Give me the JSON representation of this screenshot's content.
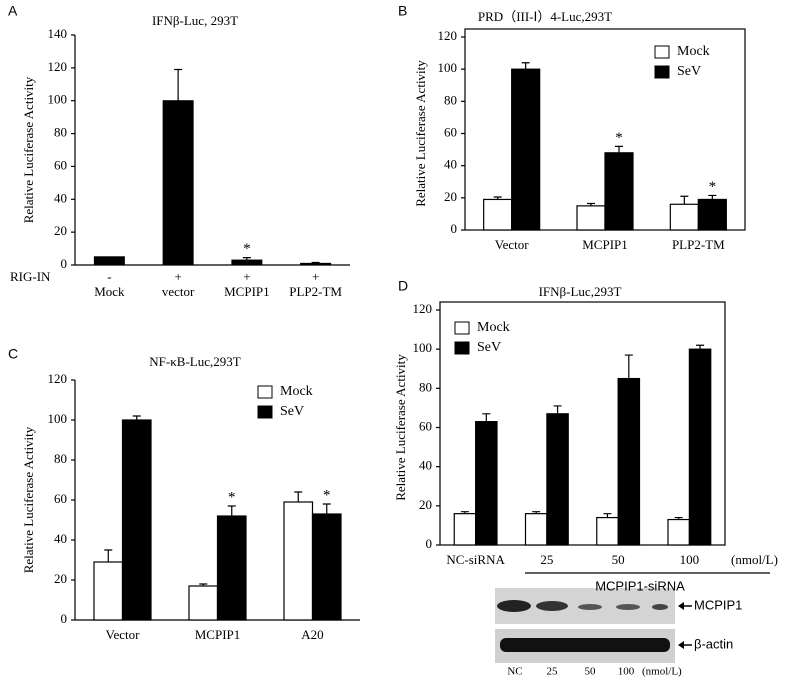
{
  "chart_data": [
    {
      "type": "bar",
      "panel": "A",
      "title": "IFNβ-Luc, 293T",
      "y_label": "Relative Luciferase Activity",
      "categories": [
        "Mock",
        "vector",
        "MCPIP1",
        "PLP2-TM"
      ],
      "row_label": "RIG-IN",
      "row_values": [
        "-",
        "+",
        "+",
        "+"
      ],
      "values": [
        5,
        100,
        3,
        1
      ],
      "errors": [
        0,
        19,
        1.5,
        0.5
      ],
      "color": "#000000",
      "ylim": [
        0,
        140
      ],
      "yticks": [
        0,
        20,
        40,
        60,
        80,
        100,
        120,
        140
      ],
      "annotations": [
        {
          "text": "*",
          "index": 2
        }
      ]
    },
    {
      "type": "grouped_bar",
      "panel": "B",
      "title": "PRD（III-Ⅰ）4-Luc,293T",
      "y_label": "Relative Luciferase Activity",
      "categories": [
        "Vector",
        "MCPIP1",
        "PLP2-TM"
      ],
      "series": [
        {
          "name": "Mock",
          "color": "#ffffff",
          "values": [
            19,
            15,
            16
          ],
          "errors": [
            1.5,
            1.5,
            5
          ]
        },
        {
          "name": "SeV",
          "color": "#000000",
          "values": [
            100,
            48,
            19
          ],
          "errors": [
            4,
            4,
            2.5
          ]
        }
      ],
      "ylim": [
        0,
        120
      ],
      "yticks": [
        0,
        20,
        40,
        60,
        80,
        100,
        120
      ],
      "legend": "upper right",
      "annotations": [
        {
          "text": "*",
          "series": 1,
          "index": 1
        },
        {
          "text": "*",
          "series": 1,
          "index": 2
        }
      ]
    },
    {
      "type": "grouped_bar",
      "panel": "C",
      "title": "NF-κB-Luc,293T",
      "y_label": "Relative Luciferase Activity",
      "categories": [
        "Vector",
        "MCPIP1",
        "A20"
      ],
      "series": [
        {
          "name": "Mock",
          "color": "#ffffff",
          "values": [
            29,
            17,
            59
          ],
          "errors": [
            6,
            1,
            5
          ]
        },
        {
          "name": "SeV",
          "color": "#000000",
          "values": [
            100,
            52,
            53
          ],
          "errors": [
            2,
            5,
            5
          ]
        }
      ],
      "ylim": [
        0,
        120
      ],
      "yticks": [
        0,
        20,
        40,
        60,
        80,
        100,
        120
      ],
      "legend": "upper right",
      "annotations": [
        {
          "text": "*",
          "series": 1,
          "index": 1
        },
        {
          "text": "*",
          "series": 1,
          "index": 2
        }
      ]
    },
    {
      "type": "grouped_bar",
      "panel": "D",
      "title": "IFNβ-Luc,293T",
      "y_label": "Relative Luciferase Activity",
      "categories": [
        "NC-siRNA",
        "25",
        "50",
        "100"
      ],
      "unit_label": "(nmol/L)",
      "group_label": "MCPIP1-siRNA",
      "series": [
        {
          "name": "Mock",
          "color": "#ffffff",
          "values": [
            16,
            16,
            14,
            13
          ],
          "errors": [
            1,
            1,
            2,
            1
          ]
        },
        {
          "name": "SeV",
          "color": "#000000",
          "values": [
            63,
            67,
            85,
            100
          ],
          "errors": [
            4,
            4,
            12,
            2
          ]
        }
      ],
      "ylim": [
        0,
        120
      ],
      "yticks": [
        0,
        20,
        40,
        60,
        80,
        100,
        120
      ],
      "legend": "upper left"
    }
  ],
  "blot": {
    "bands": [
      "MCPIP1",
      "β-actin"
    ],
    "lanes": [
      "NC",
      "25",
      "50",
      "100"
    ],
    "unit": "(nmol/L)"
  }
}
